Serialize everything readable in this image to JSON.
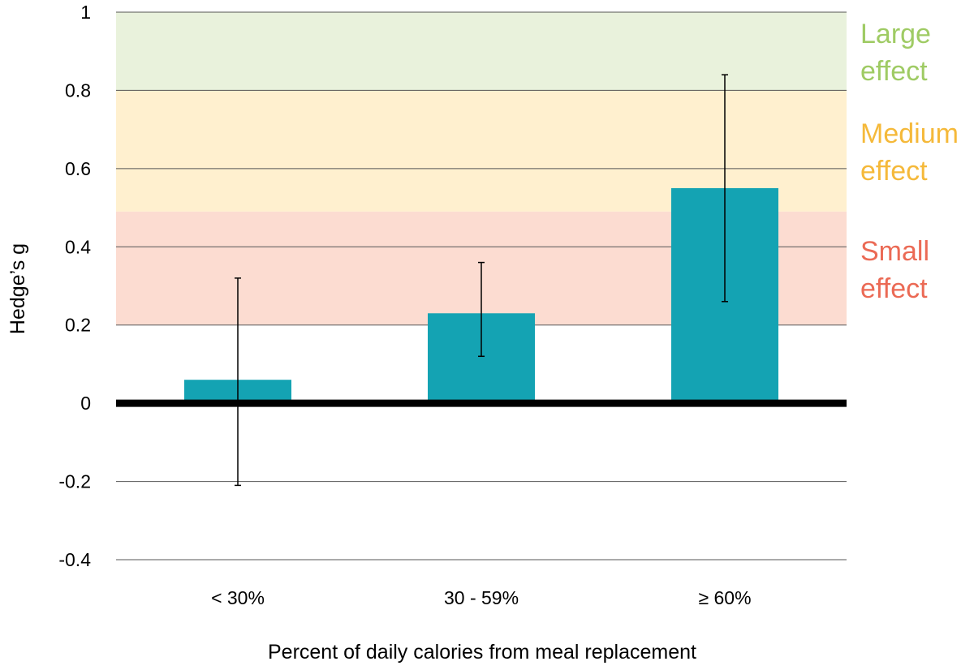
{
  "chart_data": {
    "type": "bar",
    "title": "",
    "xlabel": "Percent of daily calories from meal replacement",
    "ylabel": "Hedge’s g",
    "ylim": [
      -0.4,
      1
    ],
    "yticks": [
      {
        "value": 1,
        "label": "1"
      },
      {
        "value": 0.8,
        "label": "0.8"
      },
      {
        "value": 0.6,
        "label": "0.6"
      },
      {
        "value": 0.4,
        "label": "0.4"
      },
      {
        "value": 0.2,
        "label": "0.2"
      },
      {
        "value": 0,
        "label": "0"
      },
      {
        "value": -0.2,
        "label": "-0.2"
      },
      {
        "value": -0.4,
        "label": "-0.4"
      }
    ],
    "grid": true,
    "categories": [
      "< 30%",
      "30 - 59%",
      "≥ 60%"
    ],
    "values": [
      0.06,
      0.23,
      0.55
    ],
    "error_low": [
      -0.21,
      0.12,
      0.26
    ],
    "error_high": [
      0.32,
      0.36,
      0.84
    ],
    "bar_color": "#14a3b3",
    "zero_line_color": "#000000",
    "effect_bands": [
      {
        "label_lines": [
          "Large",
          "effect"
        ],
        "from": 0.8,
        "to": 1.0,
        "color": "#e9f2dc",
        "text_color": "#9fcb64"
      },
      {
        "label_lines": [
          "Medium",
          "effect"
        ],
        "from": 0.49,
        "to": 0.8,
        "color": "#fff0cf",
        "text_color": "#f5b93a"
      },
      {
        "label_lines": [
          "Small",
          "effect"
        ],
        "from": 0.2,
        "to": 0.49,
        "color": "#fcdcd1",
        "text_color": "#eb6a55"
      }
    ]
  }
}
